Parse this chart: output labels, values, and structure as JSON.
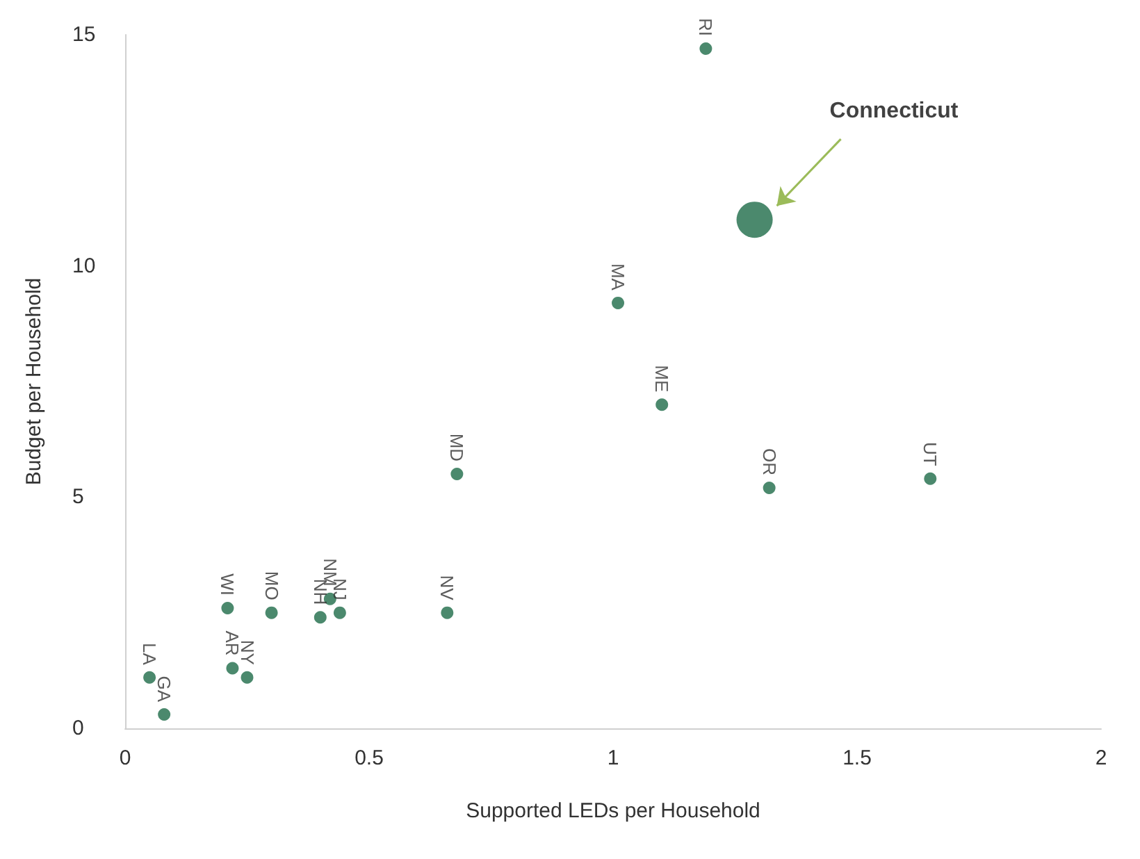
{
  "chart_data": {
    "type": "scatter",
    "xlabel": "Supported LEDs per Household",
    "ylabel": "Budget per Household",
    "series": [
      {
        "color": "#1e6b48",
        "x": [
          0.05,
          0.08,
          0.22,
          0.25,
          0.21,
          0.3,
          0.4,
          0.42,
          0.44,
          0.66,
          0.68,
          1.01,
          1.1,
          1.32,
          1.65,
          1.19
        ],
        "values": [
          1.1,
          0.3,
          1.3,
          1.1,
          2.6,
          2.5,
          2.4,
          2.8,
          2.5,
          2.5,
          5.5,
          9.2,
          7.0,
          5.2,
          5.4,
          14.7
        ]
      },
      {
        "color": "#1e6b48",
        "x": [
          1.29
        ],
        "values": [
          11.0
        ]
      }
    ],
    "annotations": [
      {
        "text": "LA",
        "x": 0.05,
        "y": 1.1
      },
      {
        "text": "GA",
        "x": 0.08,
        "y": 0.3
      },
      {
        "text": "AR",
        "x": 0.22,
        "y": 1.3
      },
      {
        "text": "NY",
        "x": 0.25,
        "y": 1.1
      },
      {
        "text": "WI",
        "x": 0.21,
        "y": 2.6
      },
      {
        "text": "MO",
        "x": 0.3,
        "y": 2.5
      },
      {
        "text": "NH",
        "x": 0.4,
        "y": 2.4
      },
      {
        "text": "NM",
        "x": 0.42,
        "y": 2.8
      },
      {
        "text": "NJ",
        "x": 0.44,
        "y": 2.5
      },
      {
        "text": "NV",
        "x": 0.66,
        "y": 2.5
      },
      {
        "text": "MD",
        "x": 0.68,
        "y": 5.5
      },
      {
        "text": "MA",
        "x": 1.01,
        "y": 9.2
      },
      {
        "text": "ME",
        "x": 1.1,
        "y": 7.0
      },
      {
        "text": "OR",
        "x": 1.32,
        "y": 5.2
      },
      {
        "text": "UT",
        "x": 1.65,
        "y": 5.4
      },
      {
        "text": "RI",
        "x": 1.19,
        "y": 14.7
      },
      "Connecticut"
    ],
    "xlim": [
      0,
      2
    ],
    "xticks": [
      0,
      0.5,
      1,
      1.5,
      2
    ],
    "ylim": [
      0,
      15
    ],
    "yticks": [
      0,
      5,
      10,
      15
    ],
    "marker": "circle"
  }
}
